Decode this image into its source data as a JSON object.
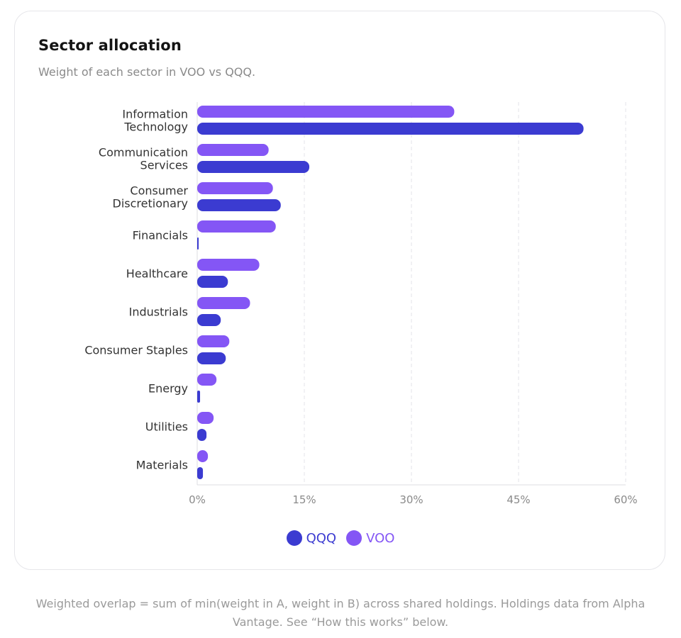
{
  "card": {
    "title": "Sector allocation",
    "subtitle": "Weight of each sector in VOO vs QQQ."
  },
  "footnote": "Weighted overlap = sum of min(weight in A, weight in B) across shared holdings. Holdings data from Alpha Vantage. See “How this works” below.",
  "legend": [
    {
      "name": "QQQ",
      "color": "#3b3bd1"
    },
    {
      "name": "VOO",
      "color": "#8456f5"
    }
  ],
  "colors": {
    "qqq": "#3b3bd1",
    "voo": "#8456f5",
    "grid": "#e3e3e8",
    "axis_text": "#8a8a8a",
    "category_text": "#333333"
  },
  "chart_data": {
    "type": "bar",
    "orientation": "horizontal",
    "categories": [
      [
        "Information",
        "Technology"
      ],
      [
        "Communication",
        "Services"
      ],
      [
        "Consumer",
        "Discretionary"
      ],
      [
        "Financials"
      ],
      [
        "Healthcare"
      ],
      [
        "Industrials"
      ],
      [
        "Consumer Staples"
      ],
      [
        "Energy"
      ],
      [
        "Utilities"
      ],
      [
        "Materials"
      ]
    ],
    "series": [
      {
        "name": "VOO",
        "values": [
          36.0,
          10.0,
          10.6,
          11.0,
          8.7,
          7.4,
          4.5,
          2.7,
          2.3,
          1.5
        ]
      },
      {
        "name": "QQQ",
        "values": [
          54.1,
          15.7,
          11.7,
          0.2,
          4.3,
          3.3,
          4.0,
          0.4,
          1.3,
          0.8
        ]
      }
    ],
    "xlim": [
      0,
      60
    ],
    "xticks": [
      0,
      15,
      30,
      45,
      60
    ],
    "xtick_labels": [
      "0%",
      "15%",
      "30%",
      "45%",
      "60%"
    ],
    "grid": true,
    "legend_position": "bottom-center"
  }
}
